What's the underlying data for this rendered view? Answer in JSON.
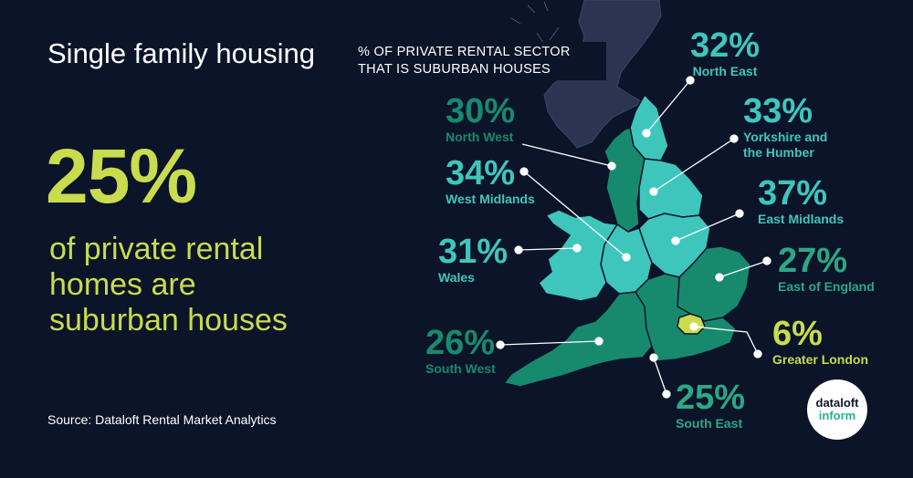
{
  "headline": "Single family housing",
  "stat": "25%",
  "stat_caption": "of private rental homes are suburban houses",
  "source": "Source: Dataloft Rental Market Analytics",
  "map_title": "% OF PRIVATE RENTAL SECTOR THAT IS SUBURBAN HOUSES",
  "regions": [
    {
      "pct": "32%",
      "name": "North East"
    },
    {
      "pct": "30%",
      "name": "North West"
    },
    {
      "pct": "33%",
      "name": "Yorkshire and the Humber"
    },
    {
      "pct": "34%",
      "name": "West Midlands"
    },
    {
      "pct": "37%",
      "name": "East Midlands"
    },
    {
      "pct": "31%",
      "name": "Wales"
    },
    {
      "pct": "27%",
      "name": "East of England"
    },
    {
      "pct": "26%",
      "name": "South West"
    },
    {
      "pct": "6%",
      "name": "Greater London"
    },
    {
      "pct": "25%",
      "name": "South East"
    }
  ],
  "logo": {
    "line1": "dataloft",
    "line2": "inform"
  },
  "colors": {
    "background": "#0b1428",
    "lime": "#c8dc4e",
    "teal": "#3ec6bd",
    "dark_green": "#178a6e",
    "scotland": "#2b3552"
  }
}
